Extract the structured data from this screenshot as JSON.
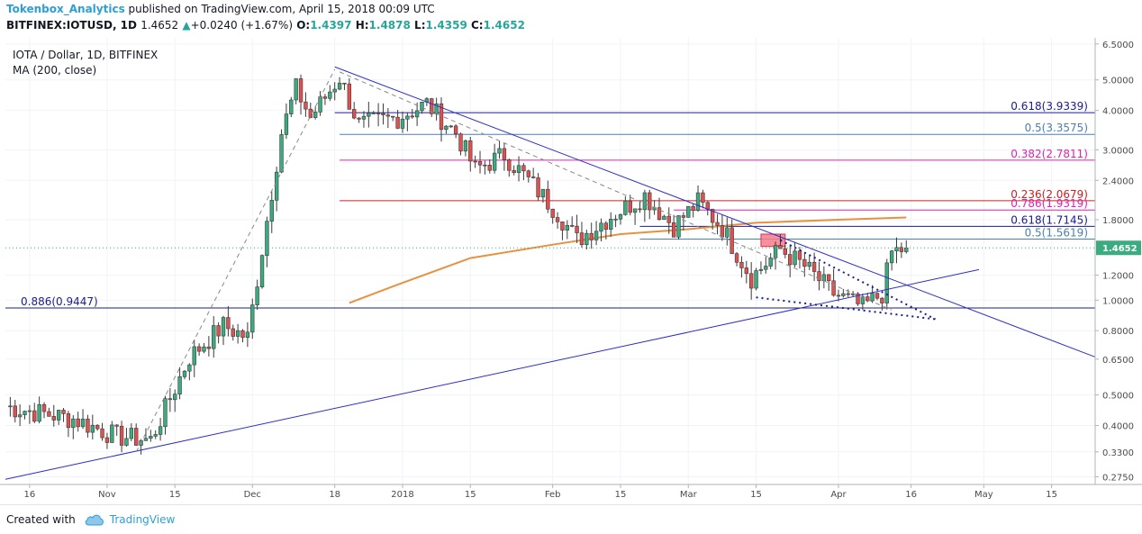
{
  "header": {
    "author": "Tokenbox_Analytics",
    "published_text": " published on TradingView.com, April 15, 2018 00:09 UTC",
    "symbol_line": "BITFINEX:IOTUSD, 1D",
    "last": "1.4652",
    "change_arrow": "▲",
    "change": "+0.0240 (+1.67%)",
    "ohlc": {
      "o_label": "O:",
      "o": "1.4397",
      "h_label": "H:",
      "h": "1.4878",
      "l_label": "L:",
      "l": "1.4359",
      "c_label": "C:",
      "c": "1.4652"
    }
  },
  "legend": {
    "title": "IOTA / Dollar, 1D, BITFINEX",
    "indicator": "MA (200, close)"
  },
  "footer": {
    "created_label": "Created with",
    "brand": "TradingView",
    "logo_icon": "tradingview-cloud-icon"
  },
  "chart_data": {
    "type": "candlestick",
    "symbol": "IOTUSD",
    "exchange": "BITFINEX",
    "interval": "1D",
    "y_scale": "log",
    "ylim": [
      0.26,
      6.8
    ],
    "xlim": [
      "2017-10-11",
      "2018-05-24"
    ],
    "price_ticks": [
      "6.5000",
      "5.0000",
      "4.0000",
      "3.0000",
      "2.4000",
      "1.8000",
      "1.2000",
      "1.0000",
      "0.8000",
      "0.6500",
      "0.5000",
      "0.4000",
      "0.3300",
      "0.2750"
    ],
    "time_ticks": [
      {
        "date": "2017-10-16",
        "label": "16"
      },
      {
        "date": "2017-11-01",
        "label": "Nov"
      },
      {
        "date": "2017-11-15",
        "label": "15"
      },
      {
        "date": "2017-12-01",
        "label": "Dec"
      },
      {
        "date": "2017-12-18",
        "label": "18"
      },
      {
        "date": "2018-01-01",
        "label": "2018"
      },
      {
        "date": "2018-01-15",
        "label": "15"
      },
      {
        "date": "2018-02-01",
        "label": "Feb"
      },
      {
        "date": "2018-02-15",
        "label": "15"
      },
      {
        "date": "2018-03-01",
        "label": "Mar"
      },
      {
        "date": "2018-03-15",
        "label": "15"
      },
      {
        "date": "2018-04-01",
        "label": "Apr"
      },
      {
        "date": "2018-04-16",
        "label": "16"
      },
      {
        "date": "2018-05-01",
        "label": "May"
      },
      {
        "date": "2018-05-15",
        "label": "15"
      }
    ],
    "last_price": 1.4652,
    "last_price_label": "1.4652",
    "colors": {
      "up": "#3bab80",
      "down": "#e05050",
      "ma": "#e69240",
      "trend": "#2d2dc8",
      "fib_blue": "#1c1c8c",
      "fib_steel": "#4a7fb0",
      "fib_magenta": "#e020b0",
      "fib_red": "#cc2020",
      "last_price_bg": "#3bab80"
    },
    "anchors": [
      {
        "date": "2017-10-11",
        "price": 0.46
      },
      {
        "date": "2017-10-25",
        "price": 0.42
      },
      {
        "date": "2017-11-03",
        "price": 0.37
      },
      {
        "date": "2017-11-10",
        "price": 0.36
      },
      {
        "date": "2017-11-18",
        "price": 0.66
      },
      {
        "date": "2017-11-25",
        "price": 0.83
      },
      {
        "date": "2017-11-30",
        "price": 0.76
      },
      {
        "date": "2017-12-03",
        "price": 1.45
      },
      {
        "date": "2017-12-07",
        "price": 3.4
      },
      {
        "date": "2017-12-10",
        "price": 4.7
      },
      {
        "date": "2017-12-13",
        "price": 3.8
      },
      {
        "date": "2017-12-19",
        "price": 5.1
      },
      {
        "date": "2017-12-23",
        "price": 3.6
      },
      {
        "date": "2017-12-31",
        "price": 3.8
      },
      {
        "date": "2018-01-06",
        "price": 4.2
      },
      {
        "date": "2018-01-12",
        "price": 3.4
      },
      {
        "date": "2018-01-16",
        "price": 2.6
      },
      {
        "date": "2018-01-22",
        "price": 2.9
      },
      {
        "date": "2018-01-27",
        "price": 2.4
      },
      {
        "date": "2018-02-02",
        "price": 1.9
      },
      {
        "date": "2018-02-06",
        "price": 1.55
      },
      {
        "date": "2018-02-13",
        "price": 1.85
      },
      {
        "date": "2018-02-20",
        "price": 2.15
      },
      {
        "date": "2018-02-26",
        "price": 1.72
      },
      {
        "date": "2018-03-03",
        "price": 2.05
      },
      {
        "date": "2018-03-08",
        "price": 1.7
      },
      {
        "date": "2018-03-14",
        "price": 1.18
      },
      {
        "date": "2018-03-20",
        "price": 1.45
      },
      {
        "date": "2018-03-25",
        "price": 1.28
      },
      {
        "date": "2018-03-31",
        "price": 1.05
      },
      {
        "date": "2018-04-06",
        "price": 0.95
      },
      {
        "date": "2018-04-10",
        "price": 1.05
      },
      {
        "date": "2018-04-12",
        "price": 1.42
      },
      {
        "date": "2018-04-15",
        "price": 1.4652
      }
    ],
    "ma200": [
      {
        "date": "2017-12-21",
        "price": 0.98
      },
      {
        "date": "2017-12-31",
        "price": 1.12
      },
      {
        "date": "2018-01-15",
        "price": 1.36
      },
      {
        "date": "2018-02-01",
        "price": 1.5
      },
      {
        "date": "2018-02-15",
        "price": 1.62
      },
      {
        "date": "2018-03-01",
        "price": 1.68
      },
      {
        "date": "2018-03-15",
        "price": 1.76
      },
      {
        "date": "2018-04-01",
        "price": 1.8
      },
      {
        "date": "2018-04-15",
        "price": 1.83
      }
    ],
    "fib_levels": [
      {
        "label": "0.618(3.9339)",
        "price": 3.9339,
        "color": "#1c1c8c",
        "from": "2017-12-18",
        "to": "2018-05-24",
        "label_side": "right"
      },
      {
        "label": "0.5(3.3575)",
        "price": 3.3575,
        "color": "#4a7fb0",
        "from": "2017-12-19",
        "to": "2018-05-24",
        "label_side": "right"
      },
      {
        "label": "0.382(2.7811)",
        "price": 2.7811,
        "color": "#e020b0",
        "from": "2017-12-19",
        "to": "2018-05-24",
        "label_side": "right"
      },
      {
        "label": "0.236(2.0679)",
        "price": 2.0679,
        "color": "#cc2020",
        "from": "2017-12-19",
        "to": "2018-05-24",
        "label_side": "right"
      },
      {
        "label": "0.786(1.9319)",
        "price": 1.9319,
        "color": "#e020b0",
        "from": "2018-02-26",
        "to": "2018-05-24",
        "label_side": "right"
      },
      {
        "label": "0.618(1.7145)",
        "price": 1.7145,
        "color": "#1c1c8c",
        "from": "2018-02-19",
        "to": "2018-05-24",
        "label_side": "right"
      },
      {
        "label": "0.5(1.5619)",
        "price": 1.5619,
        "color": "#4a7fb0",
        "from": "2018-02-19",
        "to": "2018-05-24",
        "label_side": "right"
      },
      {
        "label": "0.886(0.9447)",
        "price": 0.9447,
        "color": "#1c1c8c",
        "from": "2017-10-11",
        "to": "2018-05-24",
        "label_side": "left"
      }
    ],
    "trendlines": [
      {
        "kind": "solid",
        "color": "#2d2dc8",
        "p1": {
          "date": "2017-10-11",
          "price": 0.27
        },
        "p2": {
          "date": "2018-04-30",
          "price": 1.25
        }
      },
      {
        "kind": "solid",
        "color": "#2d2dc8",
        "p1": {
          "date": "2017-12-18",
          "price": 5.5
        },
        "p2": {
          "date": "2018-05-24",
          "price": 0.66
        }
      },
      {
        "kind": "dashed",
        "color": "#888888",
        "p1": {
          "date": "2017-11-07",
          "price": 0.33
        },
        "p2": {
          "date": "2017-12-18",
          "price": 5.4
        }
      },
      {
        "kind": "dashed",
        "color": "#888888",
        "p1": {
          "date": "2017-12-19",
          "price": 5.3
        },
        "p2": {
          "date": "2018-04-12",
          "price": 0.93
        }
      },
      {
        "kind": "dotted",
        "color": "#1c1c8c",
        "p1": {
          "date": "2018-03-20",
          "price": 1.55
        },
        "p2": {
          "date": "2018-04-21",
          "price": 0.87
        }
      },
      {
        "kind": "dotted",
        "color": "#1c1c8c",
        "p1": {
          "date": "2018-03-15",
          "price": 1.02
        },
        "p2": {
          "date": "2018-04-21",
          "price": 0.87
        }
      }
    ],
    "highlight_zone": {
      "from": "2018-03-16",
      "to": "2018-03-21",
      "top": 1.62,
      "bottom": 1.48,
      "color": "#f47c8a"
    }
  }
}
